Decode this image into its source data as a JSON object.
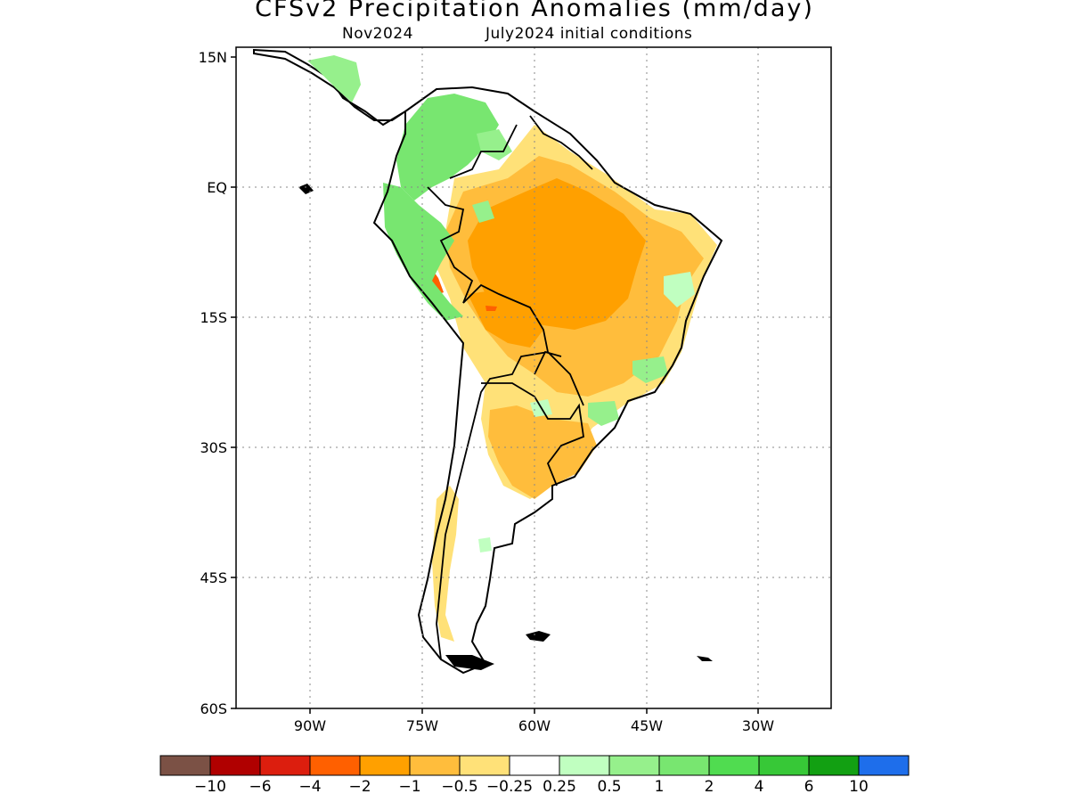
{
  "title": "CFSv2 Precipitation Anomalies (mm/day)",
  "subtitle_left": "Nov2024",
  "subtitle_right": "July2024 initial conditions",
  "map": {
    "lat_labels": [
      "15N",
      "EQ",
      "15S",
      "30S",
      "45S",
      "60S"
    ],
    "lon_labels": [
      "90W",
      "75W",
      "60W",
      "45W",
      "30W"
    ]
  },
  "colorbar": {
    "colors": [
      "#7b5145",
      "#b00000",
      "#dc1e0e",
      "#ff6000",
      "#ffa000",
      "#ffbd3c",
      "#ffe178",
      "#ffffff",
      "#c0ffc0",
      "#96f08c",
      "#78e670",
      "#50dc50",
      "#37c837",
      "#12a012",
      "#1e6eeb"
    ],
    "labels": [
      "−10",
      "−6",
      "−4",
      "−2",
      "−1",
      "−0.5",
      "−0.25",
      "0.25",
      "0.5",
      "1",
      "2",
      "4",
      "6",
      "10"
    ]
  }
}
